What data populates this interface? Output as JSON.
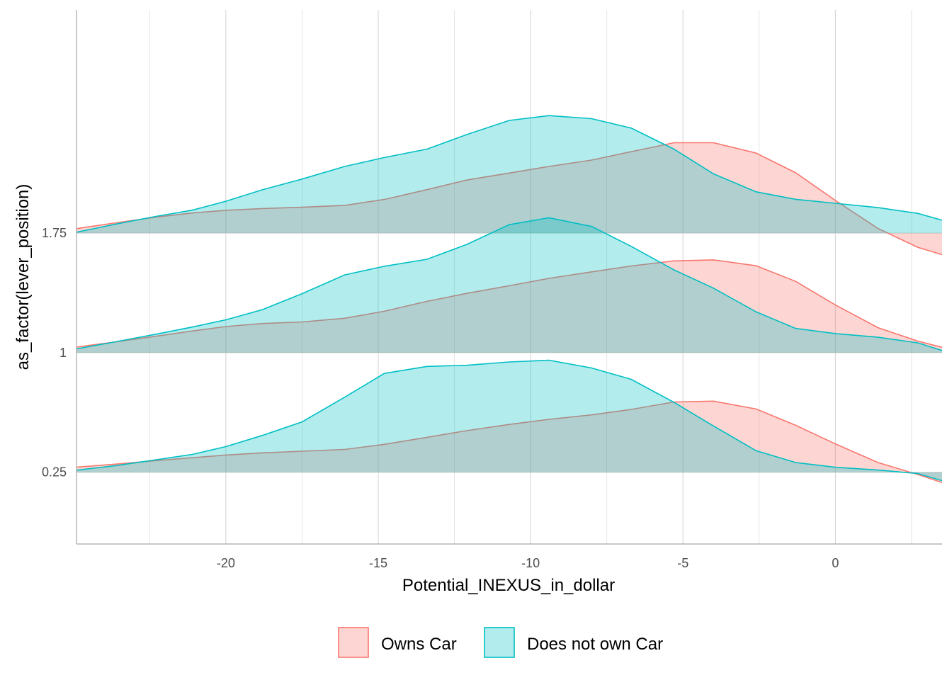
{
  "chart_data": {
    "type": "area",
    "subtype": "ridgeline-density",
    "xlabel": "Potential_INEXUS_in_dollar",
    "ylabel": "as_factor(lever_position)",
    "xlim": [
      -24.9,
      3.5
    ],
    "ylim": [
      -0.2,
      3.15
    ],
    "x_ticks": [
      -20,
      -15,
      -10,
      -5,
      0
    ],
    "x_tick_labels": [
      "-20",
      "-15",
      "-10",
      "-5",
      "0"
    ],
    "y_ticks": [
      0.25,
      1,
      1.75
    ],
    "y_tick_labels": [
      "0.25",
      "1",
      "1.75"
    ],
    "grid": true,
    "legend_position": "bottom",
    "ridges": [
      {
        "baseline": 0.25,
        "ridge": "0.25"
      },
      {
        "baseline": 1.0,
        "ridge": "1"
      },
      {
        "baseline": 1.75,
        "ridge": "1.75"
      }
    ],
    "x": [
      -24.9,
      -23.6,
      -22.3,
      -21.1,
      -20.0,
      -18.8,
      -17.5,
      -16.1,
      -14.8,
      -13.4,
      -12.1,
      -10.7,
      -9.4,
      -8.0,
      -6.7,
      -5.3,
      -4.0,
      -2.6,
      -1.3,
      0.0,
      1.4,
      2.7,
      3.5
    ],
    "series": [
      {
        "name": "Owns Car",
        "line_color": "#F8766D",
        "fill_color": "#F8766D",
        "values": [
          [
            0.282,
            0.301,
            0.323,
            0.341,
            0.358,
            0.372,
            0.382,
            0.393,
            0.425,
            0.469,
            0.511,
            0.55,
            0.582,
            0.61,
            0.644,
            0.691,
            0.696,
            0.647,
            0.544,
            0.428,
            0.311,
            0.236,
            0.185
          ],
          [
            1.035,
            1.068,
            1.103,
            1.136,
            1.164,
            1.183,
            1.193,
            1.216,
            1.26,
            1.322,
            1.372,
            1.42,
            1.466,
            1.507,
            1.544,
            1.576,
            1.582,
            1.545,
            1.447,
            1.299,
            1.157,
            1.073,
            1.034
          ],
          [
            1.778,
            1.815,
            1.85,
            1.876,
            1.893,
            1.904,
            1.912,
            1.924,
            1.961,
            2.023,
            2.083,
            2.127,
            2.168,
            2.208,
            2.261,
            2.317,
            2.317,
            2.252,
            2.128,
            1.955,
            1.779,
            1.661,
            1.615
          ]
        ]
      },
      {
        "name": "Does not own Car",
        "line_color": "#00BFC4",
        "fill_color": "#00BFC4",
        "values": [
          [
            0.263,
            0.292,
            0.328,
            0.362,
            0.411,
            0.481,
            0.566,
            0.721,
            0.87,
            0.914,
            0.921,
            0.942,
            0.953,
            0.904,
            0.833,
            0.689,
            0.54,
            0.385,
            0.311,
            0.281,
            0.264,
            0.242,
            0.197
          ],
          [
            1.024,
            1.069,
            1.116,
            1.161,
            1.206,
            1.27,
            1.37,
            1.488,
            1.542,
            1.586,
            1.679,
            1.803,
            1.846,
            1.792,
            1.667,
            1.52,
            1.405,
            1.256,
            1.152,
            1.12,
            1.097,
            1.062,
            1.014
          ],
          [
            1.756,
            1.807,
            1.855,
            1.894,
            1.95,
            2.022,
            2.089,
            2.168,
            2.224,
            2.277,
            2.368,
            2.457,
            2.487,
            2.468,
            2.409,
            2.277,
            2.122,
            2.009,
            1.962,
            1.937,
            1.91,
            1.874,
            1.831
          ]
        ]
      }
    ]
  },
  "legend": {
    "items": [
      {
        "label": "Owns Car",
        "color": "#F8766D"
      },
      {
        "label": "Does not own Car",
        "color": "#00BFC4"
      }
    ]
  }
}
